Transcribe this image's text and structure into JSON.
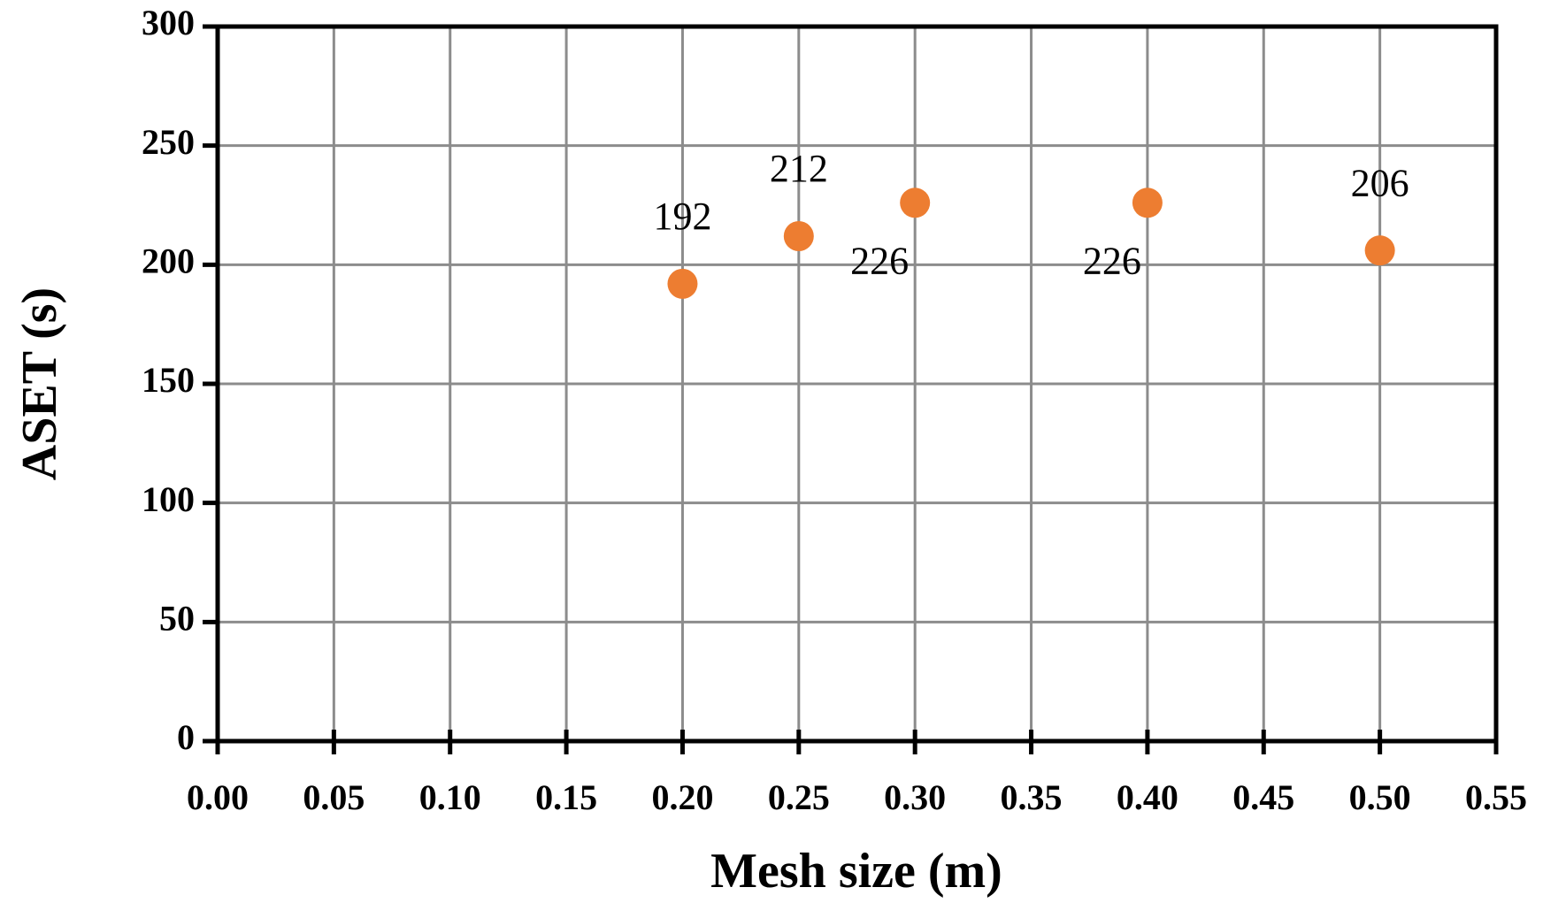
{
  "chart_data": {
    "type": "scatter",
    "x_label": "Mesh size (m)",
    "y_label": "ASET (s)",
    "x": [
      0.2,
      0.25,
      0.3,
      0.4,
      0.5
    ],
    "values": [
      192,
      212,
      226,
      226,
      206
    ],
    "color": "#ED7D31",
    "xlim": [
      0,
      0.55
    ],
    "xticks": [
      {
        "value": 0,
        "label": "0.00"
      },
      {
        "value": 0.05,
        "label": "0.05"
      },
      {
        "value": 0.1,
        "label": "0.10"
      },
      {
        "value": 0.15,
        "label": "0.15"
      },
      {
        "value": 0.2,
        "label": "0.20"
      },
      {
        "value": 0.25,
        "label": "0.25"
      },
      {
        "value": 0.3,
        "label": "0.30"
      },
      {
        "value": 0.35,
        "label": "0.35"
      },
      {
        "value": 0.4,
        "label": "0.40"
      },
      {
        "value": 0.45,
        "label": "0.45"
      },
      {
        "value": 0.5,
        "label": "0.50"
      },
      {
        "value": 0.55,
        "label": "0.55"
      }
    ],
    "ylim": [
      0,
      300
    ],
    "yticks": [
      0,
      50,
      100,
      150,
      200,
      250,
      300
    ],
    "grid": true
  }
}
